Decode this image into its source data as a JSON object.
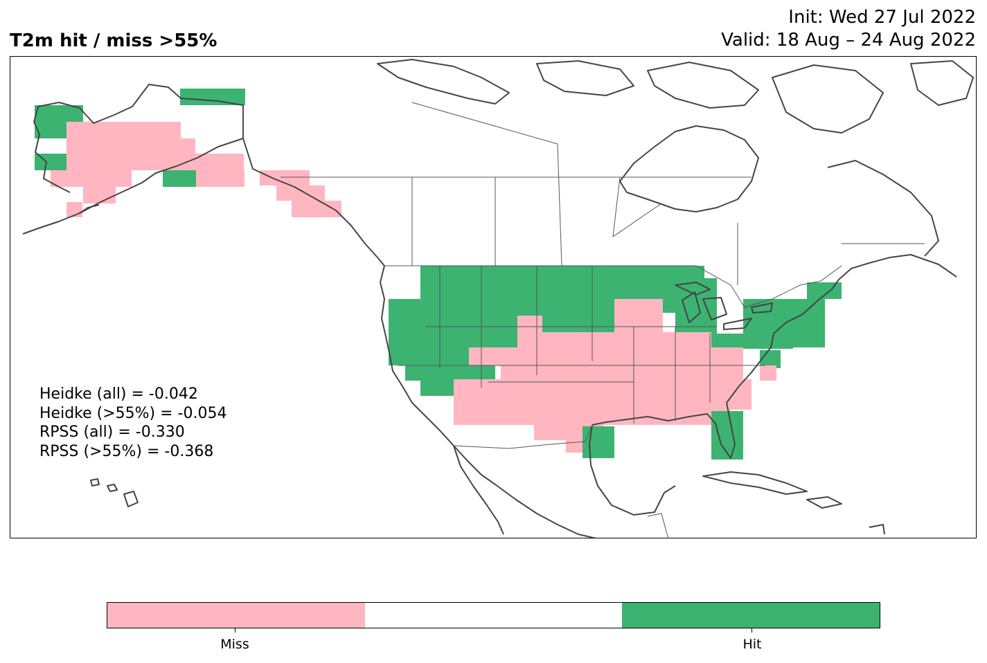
{
  "header": {
    "title": "T2m hit / miss  >55%",
    "init": "Init: Wed 27 Jul 2022",
    "valid": "Valid: 18 Aug – 24 Aug 2022"
  },
  "stats": [
    "Heidke (all) = -0.042",
    "Heidke (>55%) = -0.054",
    "RPSS (all) = -0.330",
    "RPSS (>55%) = -0.368"
  ],
  "colorbar": {
    "colors": {
      "miss": "#ffb6c1",
      "neutral": "#ffffff",
      "hit": "#3cb371"
    },
    "labels": {
      "miss": "Miss",
      "hit": "Hit"
    }
  },
  "map_style": {
    "coast_color": "#444444",
    "border_color": "#555555"
  }
}
